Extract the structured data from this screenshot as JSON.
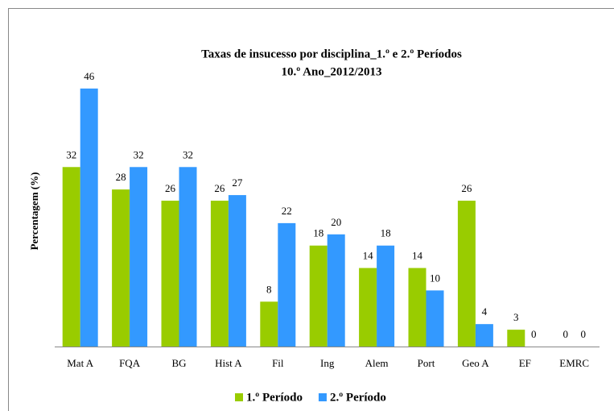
{
  "chart_data": {
    "type": "bar",
    "title": "Taxas de insucesso por disciplina_1.º e 2.º Períodos",
    "subtitle": "10.º Ano_2012/2013",
    "y_label": "Percentagem (%)",
    "categories": [
      "Mat A",
      "FQA",
      "BG",
      "Hist A",
      "Fil",
      "Ing",
      "Alem",
      "Port",
      "Geo A",
      "EF",
      "EMRC"
    ],
    "series": [
      {
        "name": "1.º Período",
        "color": "#99cc00",
        "values": [
          32,
          28,
          26,
          26,
          8,
          18,
          14,
          14,
          26,
          3,
          0
        ]
      },
      {
        "name": "2.º Período",
        "color": "#3399ff",
        "values": [
          46,
          32,
          32,
          27,
          22,
          20,
          18,
          10,
          4,
          0,
          0
        ]
      }
    ],
    "legend": "bottom"
  }
}
